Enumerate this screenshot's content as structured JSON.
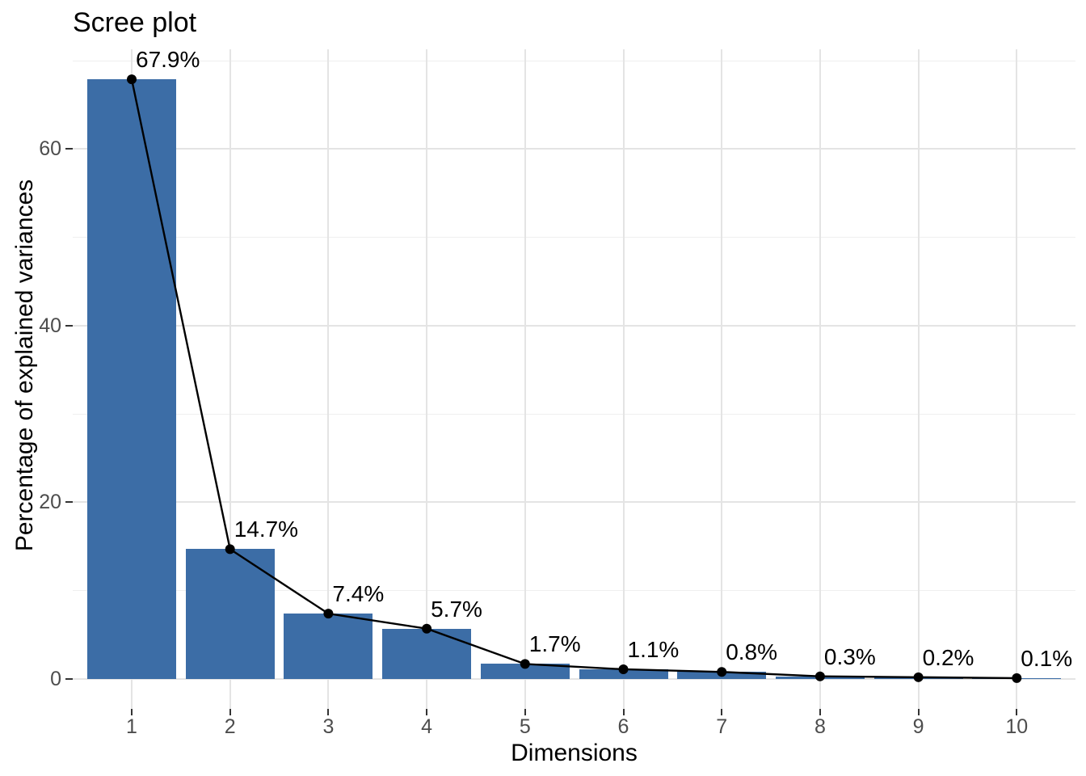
{
  "title": "Scree plot",
  "chart_data": {
    "type": "bar",
    "overlay": "line+point",
    "title": "Scree plot",
    "xlabel": "Dimensions",
    "ylabel": "Percentage of explained variances",
    "categories": [
      "1",
      "2",
      "3",
      "4",
      "5",
      "6",
      "7",
      "8",
      "9",
      "10"
    ],
    "values": [
      67.9,
      14.7,
      7.4,
      5.7,
      1.7,
      1.1,
      0.8,
      0.3,
      0.2,
      0.1
    ],
    "point_labels": [
      "67.9%",
      "14.7%",
      "7.4%",
      "5.7%",
      "1.7%",
      "1.1%",
      "0.8%",
      "0.3%",
      "0.2%",
      "0.1%"
    ],
    "yticks": [
      0,
      20,
      40,
      60
    ],
    "minor_gridlines": [
      10,
      30,
      50,
      70
    ],
    "ylim": [
      -3.4,
      71.3
    ],
    "grid": true,
    "legend": false
  },
  "colors": {
    "bar_fill": "#3C6DA6",
    "line": "#000000",
    "point": "#000000",
    "grid_major": "#E4E4E4",
    "grid_minor": "#EFEFEF",
    "tick": "#333333",
    "axis_text": "#4D4D4D",
    "title_text": "#000000",
    "background": "#FFFFFF"
  }
}
